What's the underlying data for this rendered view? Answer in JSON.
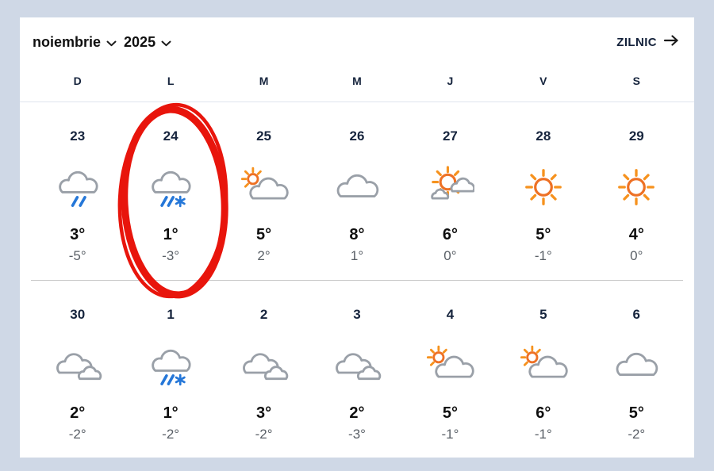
{
  "header": {
    "month_label": "noiembrie",
    "year_label": "2025",
    "daily_link_label": "ZILNIC"
  },
  "weekday_headers": [
    "D",
    "L",
    "M",
    "M",
    "J",
    "V",
    "S"
  ],
  "weeks": [
    {
      "days": [
        {
          "date": "23",
          "icon": "cloud-rain",
          "high": "3°",
          "low": "-5°"
        },
        {
          "date": "24",
          "icon": "cloud-rain-snow",
          "high": "1°",
          "low": "-3°",
          "annotated": true
        },
        {
          "date": "25",
          "icon": "sun-behind-cloud",
          "high": "5°",
          "low": "2°"
        },
        {
          "date": "26",
          "icon": "cloud",
          "high": "8°",
          "low": "1°"
        },
        {
          "date": "27",
          "icon": "sun-with-clouds",
          "high": "6°",
          "low": "0°"
        },
        {
          "date": "28",
          "icon": "sun",
          "high": "5°",
          "low": "-1°"
        },
        {
          "date": "29",
          "icon": "sun",
          "high": "4°",
          "low": "0°"
        }
      ]
    },
    {
      "days": [
        {
          "date": "30",
          "icon": "clouds",
          "high": "2°",
          "low": "-2°"
        },
        {
          "date": "1",
          "icon": "cloud-rain-snow",
          "high": "1°",
          "low": "-2°"
        },
        {
          "date": "2",
          "icon": "clouds",
          "high": "3°",
          "low": "-2°"
        },
        {
          "date": "3",
          "icon": "clouds",
          "high": "2°",
          "low": "-3°"
        },
        {
          "date": "4",
          "icon": "sun-behind-cloud",
          "high": "5°",
          "low": "-1°"
        },
        {
          "date": "5",
          "icon": "sun-behind-cloud",
          "high": "6°",
          "low": "-1°"
        },
        {
          "date": "6",
          "icon": "cloud",
          "high": "5°",
          "low": "-2°"
        }
      ]
    }
  ],
  "annotation": {
    "shape": "hand-drawn-red-ellipse",
    "highlights_date": "24",
    "color": "#e8150c"
  },
  "colors": {
    "page_background": "#cfd8e6",
    "card_background": "#ffffff",
    "date_text": "#16243d",
    "high_temp_text": "#0e0e0e",
    "low_temp_text": "#5a6067",
    "sun_orange": "#ee7125",
    "ray_orange": "#f6921e",
    "cloud_gray": "#9aa0a8",
    "precip_blue": "#2577d8",
    "annotation_red": "#e8150c",
    "divider_gray": "#c6c6c6"
  }
}
